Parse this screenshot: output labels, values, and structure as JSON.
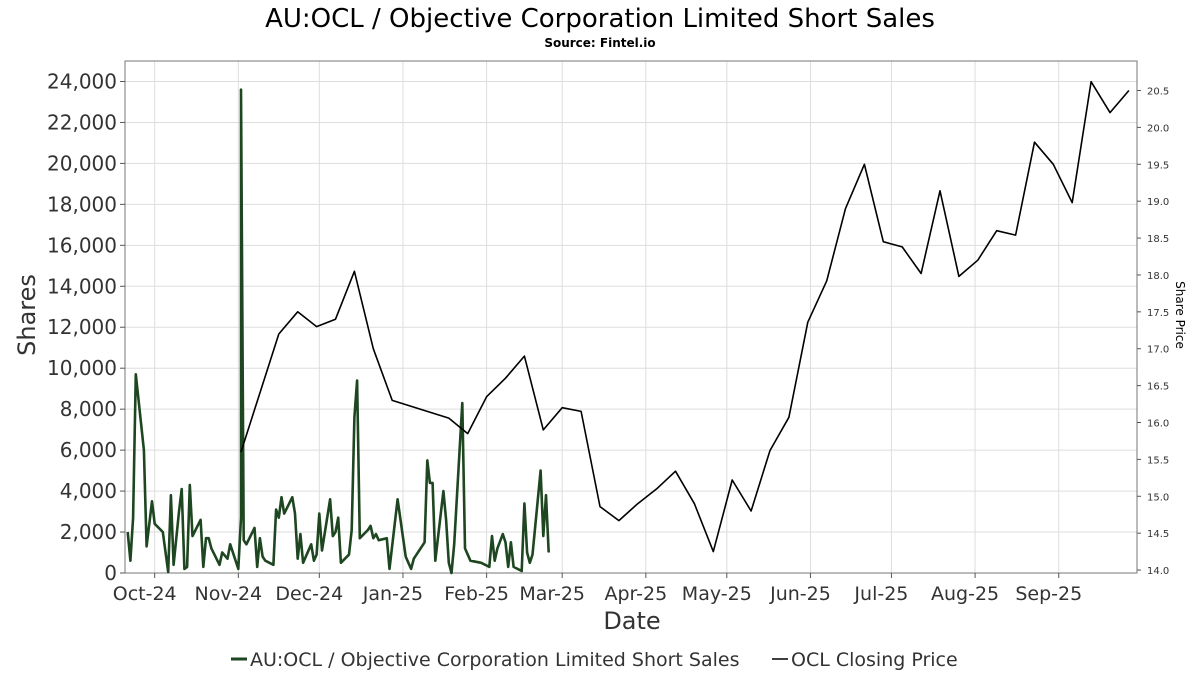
{
  "chart_data": {
    "type": "line",
    "title": "AU:OCL / Objective Corporation Limited Short Sales",
    "subtitle": "Source: Fintel.io",
    "xlabel": "Date",
    "ylabel": "Shares",
    "y2label": "Share Price",
    "ylim": [
      0,
      25000
    ],
    "y2lim": [
      13.96,
      20.9
    ],
    "xlim": [
      "2024-09-20",
      "2025-09-30"
    ],
    "yticks": [
      0,
      2000,
      4000,
      6000,
      8000,
      10000,
      12000,
      14000,
      16000,
      18000,
      20000,
      22000,
      24000
    ],
    "ytick_labels": [
      "0",
      "2,000",
      "4,000",
      "6,000",
      "8,000",
      "10,000",
      "12,000",
      "14,000",
      "16,000",
      "18,000",
      "20,000",
      "22,000",
      "24,000"
    ],
    "y2ticks": [
      14.0,
      14.5,
      15.0,
      15.5,
      16.0,
      16.5,
      17.0,
      17.5,
      18.0,
      18.5,
      19.0,
      19.5,
      20.0,
      20.5
    ],
    "y2tick_labels": [
      "14.0",
      "14.5",
      "15.0",
      "15.5",
      "16.0",
      "16.5",
      "17.0",
      "17.5",
      "18.0",
      "18.5",
      "19.0",
      "19.5",
      "20.0",
      "20.5"
    ],
    "xticks": [
      {
        "date": "2024-10-01",
        "label": "Oct-24"
      },
      {
        "date": "2024-11-01",
        "label": "Nov-24"
      },
      {
        "date": "2024-12-01",
        "label": "Dec-24"
      },
      {
        "date": "2025-01-01",
        "label": "Jan-25"
      },
      {
        "date": "2025-02-01",
        "label": "Feb-25"
      },
      {
        "date": "2025-03-01",
        "label": "Mar-25"
      },
      {
        "date": "2025-04-01",
        "label": "Apr-25"
      },
      {
        "date": "2025-05-01",
        "label": "May-25"
      },
      {
        "date": "2025-06-01",
        "label": "Jun-25"
      },
      {
        "date": "2025-07-01",
        "label": "Jul-25"
      },
      {
        "date": "2025-08-01",
        "label": "Aug-25"
      },
      {
        "date": "2025-09-01",
        "label": "Sep-25"
      }
    ],
    "grid": true,
    "legend_position": "bottom",
    "series": [
      {
        "name": "AU:OCL / Objective Corporation Limited Short Sales",
        "axis": "left",
        "color": "#1e4620",
        "points": [
          [
            "2024-09-21",
            2000
          ],
          [
            "2024-09-22",
            600
          ],
          [
            "2024-09-23",
            2700
          ],
          [
            "2024-09-24",
            9700
          ],
          [
            "2024-09-27",
            6000
          ],
          [
            "2024-09-28",
            1300
          ],
          [
            "2024-09-30",
            3500
          ],
          [
            "2024-10-01",
            2400
          ],
          [
            "2024-10-04",
            2000
          ],
          [
            "2024-10-06",
            50
          ],
          [
            "2024-10-07",
            3800
          ],
          [
            "2024-10-08",
            400
          ],
          [
            "2024-10-10",
            3000
          ],
          [
            "2024-10-11",
            4100
          ],
          [
            "2024-10-12",
            200
          ],
          [
            "2024-10-13",
            300
          ],
          [
            "2024-10-14",
            4300
          ],
          [
            "2024-10-15",
            1800
          ],
          [
            "2024-10-18",
            2600
          ],
          [
            "2024-10-19",
            300
          ],
          [
            "2024-10-20",
            1700
          ],
          [
            "2024-10-21",
            1700
          ],
          [
            "2024-10-22",
            1200
          ],
          [
            "2024-10-25",
            400
          ],
          [
            "2024-10-26",
            1000
          ],
          [
            "2024-10-28",
            700
          ],
          [
            "2024-10-29",
            1400
          ],
          [
            "2024-11-01",
            200
          ],
          [
            "2024-11-02",
            2700
          ],
          [
            "2024-11-02",
            23600
          ],
          [
            "2024-11-03",
            1600
          ],
          [
            "2024-11-04",
            1400
          ],
          [
            "2024-11-07",
            2200
          ],
          [
            "2024-11-08",
            300
          ],
          [
            "2024-11-09",
            1700
          ],
          [
            "2024-11-10",
            800
          ],
          [
            "2024-11-11",
            600
          ],
          [
            "2024-11-14",
            400
          ],
          [
            "2024-11-15",
            3100
          ],
          [
            "2024-11-16",
            2700
          ],
          [
            "2024-11-17",
            3700
          ],
          [
            "2024-11-18",
            2900
          ],
          [
            "2024-11-21",
            3700
          ],
          [
            "2024-11-22",
            2900
          ],
          [
            "2024-11-23",
            700
          ],
          [
            "2024-11-24",
            1900
          ],
          [
            "2024-11-25",
            500
          ],
          [
            "2024-11-28",
            1400
          ],
          [
            "2024-11-29",
            600
          ],
          [
            "2024-11-30",
            900
          ],
          [
            "2024-12-01",
            2900
          ],
          [
            "2024-12-02",
            1100
          ],
          [
            "2024-12-05",
            3600
          ],
          [
            "2024-12-06",
            1800
          ],
          [
            "2024-12-07",
            2000
          ],
          [
            "2024-12-08",
            2700
          ],
          [
            "2024-12-09",
            500
          ],
          [
            "2024-12-12",
            900
          ],
          [
            "2024-12-13",
            2100
          ],
          [
            "2024-12-14",
            7600
          ],
          [
            "2024-12-15",
            9400
          ],
          [
            "2024-12-16",
            1700
          ],
          [
            "2024-12-19",
            2100
          ],
          [
            "2024-12-20",
            2300
          ],
          [
            "2024-12-21",
            1700
          ],
          [
            "2024-12-22",
            1900
          ],
          [
            "2024-12-23",
            1600
          ],
          [
            "2024-12-26",
            1700
          ],
          [
            "2024-12-27",
            200
          ],
          [
            "2024-12-30",
            3600
          ],
          [
            "2025-01-02",
            800
          ],
          [
            "2025-01-03",
            500
          ],
          [
            "2025-01-04",
            200
          ],
          [
            "2025-01-05",
            700
          ],
          [
            "2025-01-09",
            1500
          ],
          [
            "2025-01-10",
            5500
          ],
          [
            "2025-01-11",
            4400
          ],
          [
            "2025-01-12",
            4400
          ],
          [
            "2025-01-13",
            600
          ],
          [
            "2025-01-16",
            4000
          ],
          [
            "2025-01-17",
            2600
          ],
          [
            "2025-01-18",
            500
          ],
          [
            "2025-01-19",
            0
          ],
          [
            "2025-01-20",
            1400
          ],
          [
            "2025-01-23",
            8300
          ],
          [
            "2025-01-24",
            1200
          ],
          [
            "2025-01-26",
            600
          ],
          [
            "2025-01-30",
            500
          ],
          [
            "2025-02-02",
            300
          ],
          [
            "2025-02-03",
            1800
          ],
          [
            "2025-02-04",
            600
          ],
          [
            "2025-02-05",
            1200
          ],
          [
            "2025-02-07",
            1900
          ],
          [
            "2025-02-08",
            1500
          ],
          [
            "2025-02-09",
            300
          ],
          [
            "2025-02-10",
            1500
          ],
          [
            "2025-02-11",
            300
          ],
          [
            "2025-02-14",
            100
          ],
          [
            "2025-02-15",
            3400
          ],
          [
            "2025-02-16",
            1000
          ],
          [
            "2025-02-17",
            500
          ],
          [
            "2025-02-18",
            900
          ],
          [
            "2025-02-21",
            5000
          ],
          [
            "2025-02-22",
            1800
          ],
          [
            "2025-02-23",
            3800
          ],
          [
            "2025-02-24",
            1000
          ]
        ]
      },
      {
        "name": "OCL Closing Price",
        "axis": "right",
        "color": "#000000",
        "points": [
          [
            "2024-11-02",
            15.6
          ],
          [
            "2024-11-09",
            16.4
          ],
          [
            "2024-11-16",
            17.2
          ],
          [
            "2024-11-23",
            17.5
          ],
          [
            "2024-11-30",
            17.3
          ],
          [
            "2024-12-07",
            17.4
          ],
          [
            "2024-12-14",
            18.05
          ],
          [
            "2024-12-21",
            17.0
          ],
          [
            "2024-12-28",
            16.3
          ],
          [
            "2025-01-18",
            16.06
          ],
          [
            "2025-01-25",
            15.85
          ],
          [
            "2025-02-01",
            16.35
          ],
          [
            "2025-02-08",
            16.6
          ],
          [
            "2025-02-15",
            16.9
          ],
          [
            "2025-02-22",
            15.9
          ],
          [
            "2025-03-01",
            16.2
          ],
          [
            "2025-03-08",
            16.15
          ],
          [
            "2025-03-15",
            14.86
          ],
          [
            "2025-03-22",
            14.67
          ],
          [
            "2025-03-29",
            14.9
          ],
          [
            "2025-04-05",
            15.1
          ],
          [
            "2025-04-12",
            15.34
          ],
          [
            "2025-04-19",
            14.9
          ],
          [
            "2025-04-26",
            14.25
          ],
          [
            "2025-05-03",
            15.22
          ],
          [
            "2025-05-10",
            14.8
          ],
          [
            "2025-05-17",
            15.62
          ],
          [
            "2025-05-24",
            16.07
          ],
          [
            "2025-05-31",
            17.36
          ],
          [
            "2025-06-07",
            17.92
          ],
          [
            "2025-06-14",
            18.9
          ],
          [
            "2025-06-21",
            19.5
          ],
          [
            "2025-06-28",
            18.45
          ],
          [
            "2025-07-05",
            18.38
          ],
          [
            "2025-07-12",
            18.02
          ],
          [
            "2025-07-19",
            19.14
          ],
          [
            "2025-07-26",
            17.98
          ],
          [
            "2025-08-02",
            18.2
          ],
          [
            "2025-08-09",
            18.6
          ],
          [
            "2025-08-16",
            18.54
          ],
          [
            "2025-08-23",
            19.8
          ],
          [
            "2025-08-30",
            19.5
          ],
          [
            "2025-09-06",
            18.98
          ],
          [
            "2025-09-13",
            20.62
          ],
          [
            "2025-09-20",
            20.2
          ],
          [
            "2025-09-27",
            20.5
          ]
        ]
      }
    ]
  }
}
